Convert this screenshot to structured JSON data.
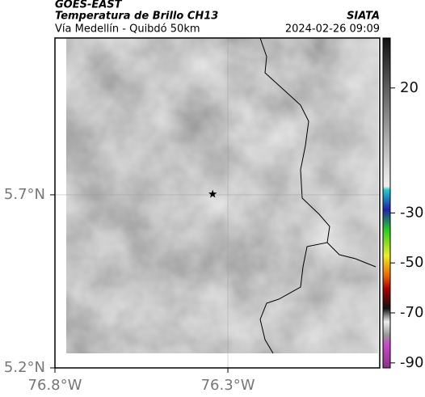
{
  "header": {
    "satellite": "GOES-EAST",
    "product": "Temperatura de Brillo CH13",
    "source": "SIATA",
    "subtitle": "Vía Medellín - Quibdó 50km",
    "datetime": "2024-02-26 09:09"
  },
  "map": {
    "xlim": [
      -76.8,
      -75.861
    ],
    "ylim": [
      5.2,
      6.153
    ],
    "xticks": [
      {
        "value": -76.8,
        "label": "76.8°W"
      },
      {
        "value": -76.3,
        "label": "76.3°W"
      }
    ],
    "yticks": [
      {
        "value": 5.2,
        "label": "5.2°N"
      },
      {
        "value": 5.7,
        "label": "5.7°N"
      }
    ],
    "marker": {
      "lon": -76.344,
      "lat": 5.702
    }
  },
  "colorbar": {
    "lim": [
      -92,
      40
    ],
    "ticks": [
      20,
      -30,
      -50,
      -70,
      -90
    ]
  }
}
